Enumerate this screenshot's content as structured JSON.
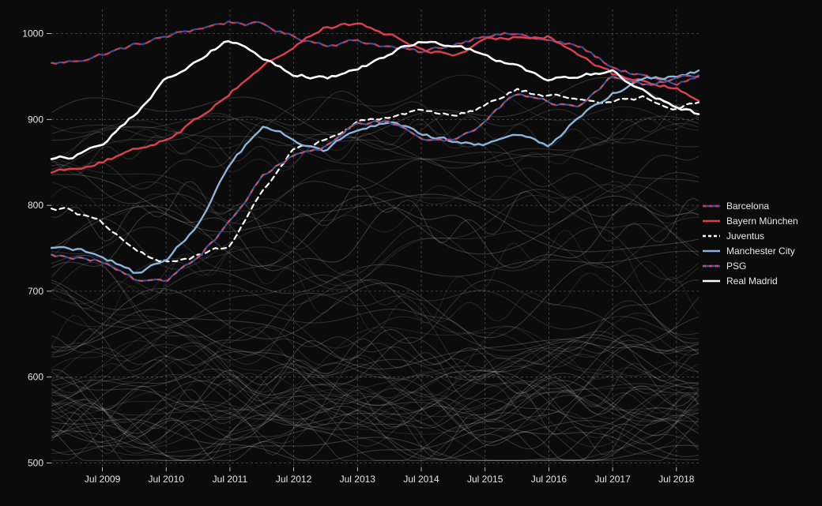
{
  "figure": {
    "background_color": "#0b0b0b",
    "text_color": "#e9e9e9"
  },
  "chart_data": {
    "type": "line",
    "title": "",
    "xlabel": "",
    "ylabel": "",
    "grid": true,
    "legend_position": "right",
    "xlim": [
      2008.7,
      2018.85
    ],
    "ylim": [
      495,
      1028
    ],
    "y_ticks": [
      500,
      600,
      700,
      800,
      900,
      1000
    ],
    "x_ticks": [
      {
        "value": 2009.5,
        "label": "Jul 2009"
      },
      {
        "value": 2010.5,
        "label": "Jul 2010"
      },
      {
        "value": 2011.5,
        "label": "Jul 2011"
      },
      {
        "value": 2012.5,
        "label": "Jul 2012"
      },
      {
        "value": 2013.5,
        "label": "Jul 2013"
      },
      {
        "value": 2014.5,
        "label": "Jul 2014"
      },
      {
        "value": 2015.5,
        "label": "Jul 2015"
      },
      {
        "value": 2016.5,
        "label": "Jul 2016"
      },
      {
        "value": 2017.5,
        "label": "Jul 2017"
      },
      {
        "value": 2018.5,
        "label": "Jul 2018"
      }
    ],
    "x": [
      2008.7,
      2009.0,
      2009.5,
      2010.0,
      2010.5,
      2011.0,
      2011.5,
      2012.0,
      2012.5,
      2013.0,
      2013.5,
      2014.0,
      2014.5,
      2015.0,
      2015.5,
      2016.0,
      2016.5,
      2017.0,
      2017.5,
      2018.0,
      2018.5,
      2018.85
    ],
    "series": [
      {
        "name": "Barcelona",
        "color": "#3d4d9e",
        "overlay_color": "#cf3a4f",
        "overlay_dash": [
          7,
          7
        ],
        "dash": null,
        "width": 2.2,
        "values": [
          965,
          967,
          976,
          986,
          996,
          1006,
          1014,
          1010,
          996,
          988,
          992,
          985,
          977,
          987,
          1000,
          999,
          991,
          984,
          961,
          949,
          941,
          951
        ]
      },
      {
        "name": "Bayern München",
        "color": "#dc4050",
        "overlay_color": null,
        "overlay_dash": null,
        "dash": null,
        "width": 2.4,
        "values": [
          840,
          843,
          852,
          862,
          878,
          902,
          932,
          962,
          985,
          1008,
          1011,
          998,
          982,
          975,
          990,
          996,
          999,
          975,
          952,
          945,
          935,
          925
        ]
      },
      {
        "name": "Juventus",
        "color": "#ffffff",
        "overlay_color": null,
        "overlay_dash": null,
        "dash": [
          6,
          5
        ],
        "width": 2.2,
        "values": [
          797,
          795,
          778,
          745,
          736,
          741,
          752,
          812,
          866,
          876,
          896,
          905,
          910,
          906,
          916,
          934,
          926,
          925,
          921,
          925,
          916,
          921
        ]
      },
      {
        "name": "Manchester City",
        "color": "#8ab4dc",
        "overlay_color": null,
        "overlay_dash": null,
        "dash": null,
        "width": 2.4,
        "values": [
          750,
          749,
          743,
          722,
          736,
          779,
          846,
          891,
          877,
          863,
          889,
          900,
          884,
          874,
          871,
          880,
          869,
          906,
          931,
          946,
          951,
          956
        ]
      },
      {
        "name": "PSG",
        "color": "#3a569b",
        "overlay_color": "#c9506b",
        "overlay_dash": [
          6,
          6
        ],
        "dash": null,
        "width": 2.2,
        "values": [
          741,
          740,
          736,
          715,
          712,
          741,
          781,
          831,
          859,
          866,
          896,
          899,
          879,
          876,
          896,
          931,
          919,
          916,
          949,
          941,
          946,
          951
        ]
      },
      {
        "name": "Real Madrid",
        "color": "#ffffff",
        "overlay_color": null,
        "overlay_dash": null,
        "dash": null,
        "width": 2.6,
        "values": [
          855,
          857,
          872,
          906,
          946,
          971,
          993,
          974,
          954,
          948,
          956,
          976,
          992,
          984,
          974,
          964,
          946,
          951,
          956,
          934,
          916,
          906
        ]
      }
    ],
    "background_lines": {
      "description": "other clubs, faint gray",
      "count": 70,
      "color": "#ffffff",
      "opacity_range": [
        0.09,
        0.19
      ],
      "value_range": [
        503,
        952
      ]
    },
    "axis": {
      "tick_color": "#e6e6e6",
      "grid_color": "#8a8a8a"
    }
  }
}
